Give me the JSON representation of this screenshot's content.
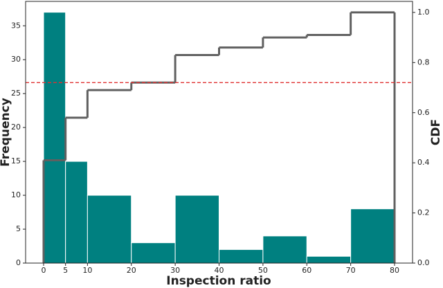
{
  "chart_data": {
    "type": "histogram",
    "xlabel": "Inspection ratio",
    "ylabel": "Frequency",
    "y2label": "CDF",
    "bins": [
      0,
      5,
      10,
      20,
      30,
      40,
      50,
      60,
      70,
      80
    ],
    "counts": [
      37,
      15,
      10,
      3,
      10,
      2,
      4,
      1,
      8
    ],
    "color": "#008080",
    "cdf": [
      0.41,
      0.58,
      0.69,
      0.72,
      0.83,
      0.86,
      0.9,
      0.91,
      1.0
    ],
    "cdf_color": "#606060",
    "hline": 0.72,
    "hline_axis": "y2",
    "hline_color": "#e03030",
    "xlim": [
      -4.1,
      84.1
    ],
    "ylim": [
      0,
      38.6
    ],
    "y2lim": [
      0,
      1.044
    ],
    "xticks": [
      0,
      5,
      10,
      20,
      30,
      40,
      50,
      60,
      70,
      80
    ],
    "yticks": [
      0,
      5,
      10,
      15,
      20,
      25,
      30,
      35
    ],
    "y2ticks": [
      {
        "value": 0,
        "label": "0.0"
      },
      0.2,
      0.4,
      0.6,
      0.8,
      {
        "value": 1,
        "label": "1.0"
      }
    ]
  }
}
